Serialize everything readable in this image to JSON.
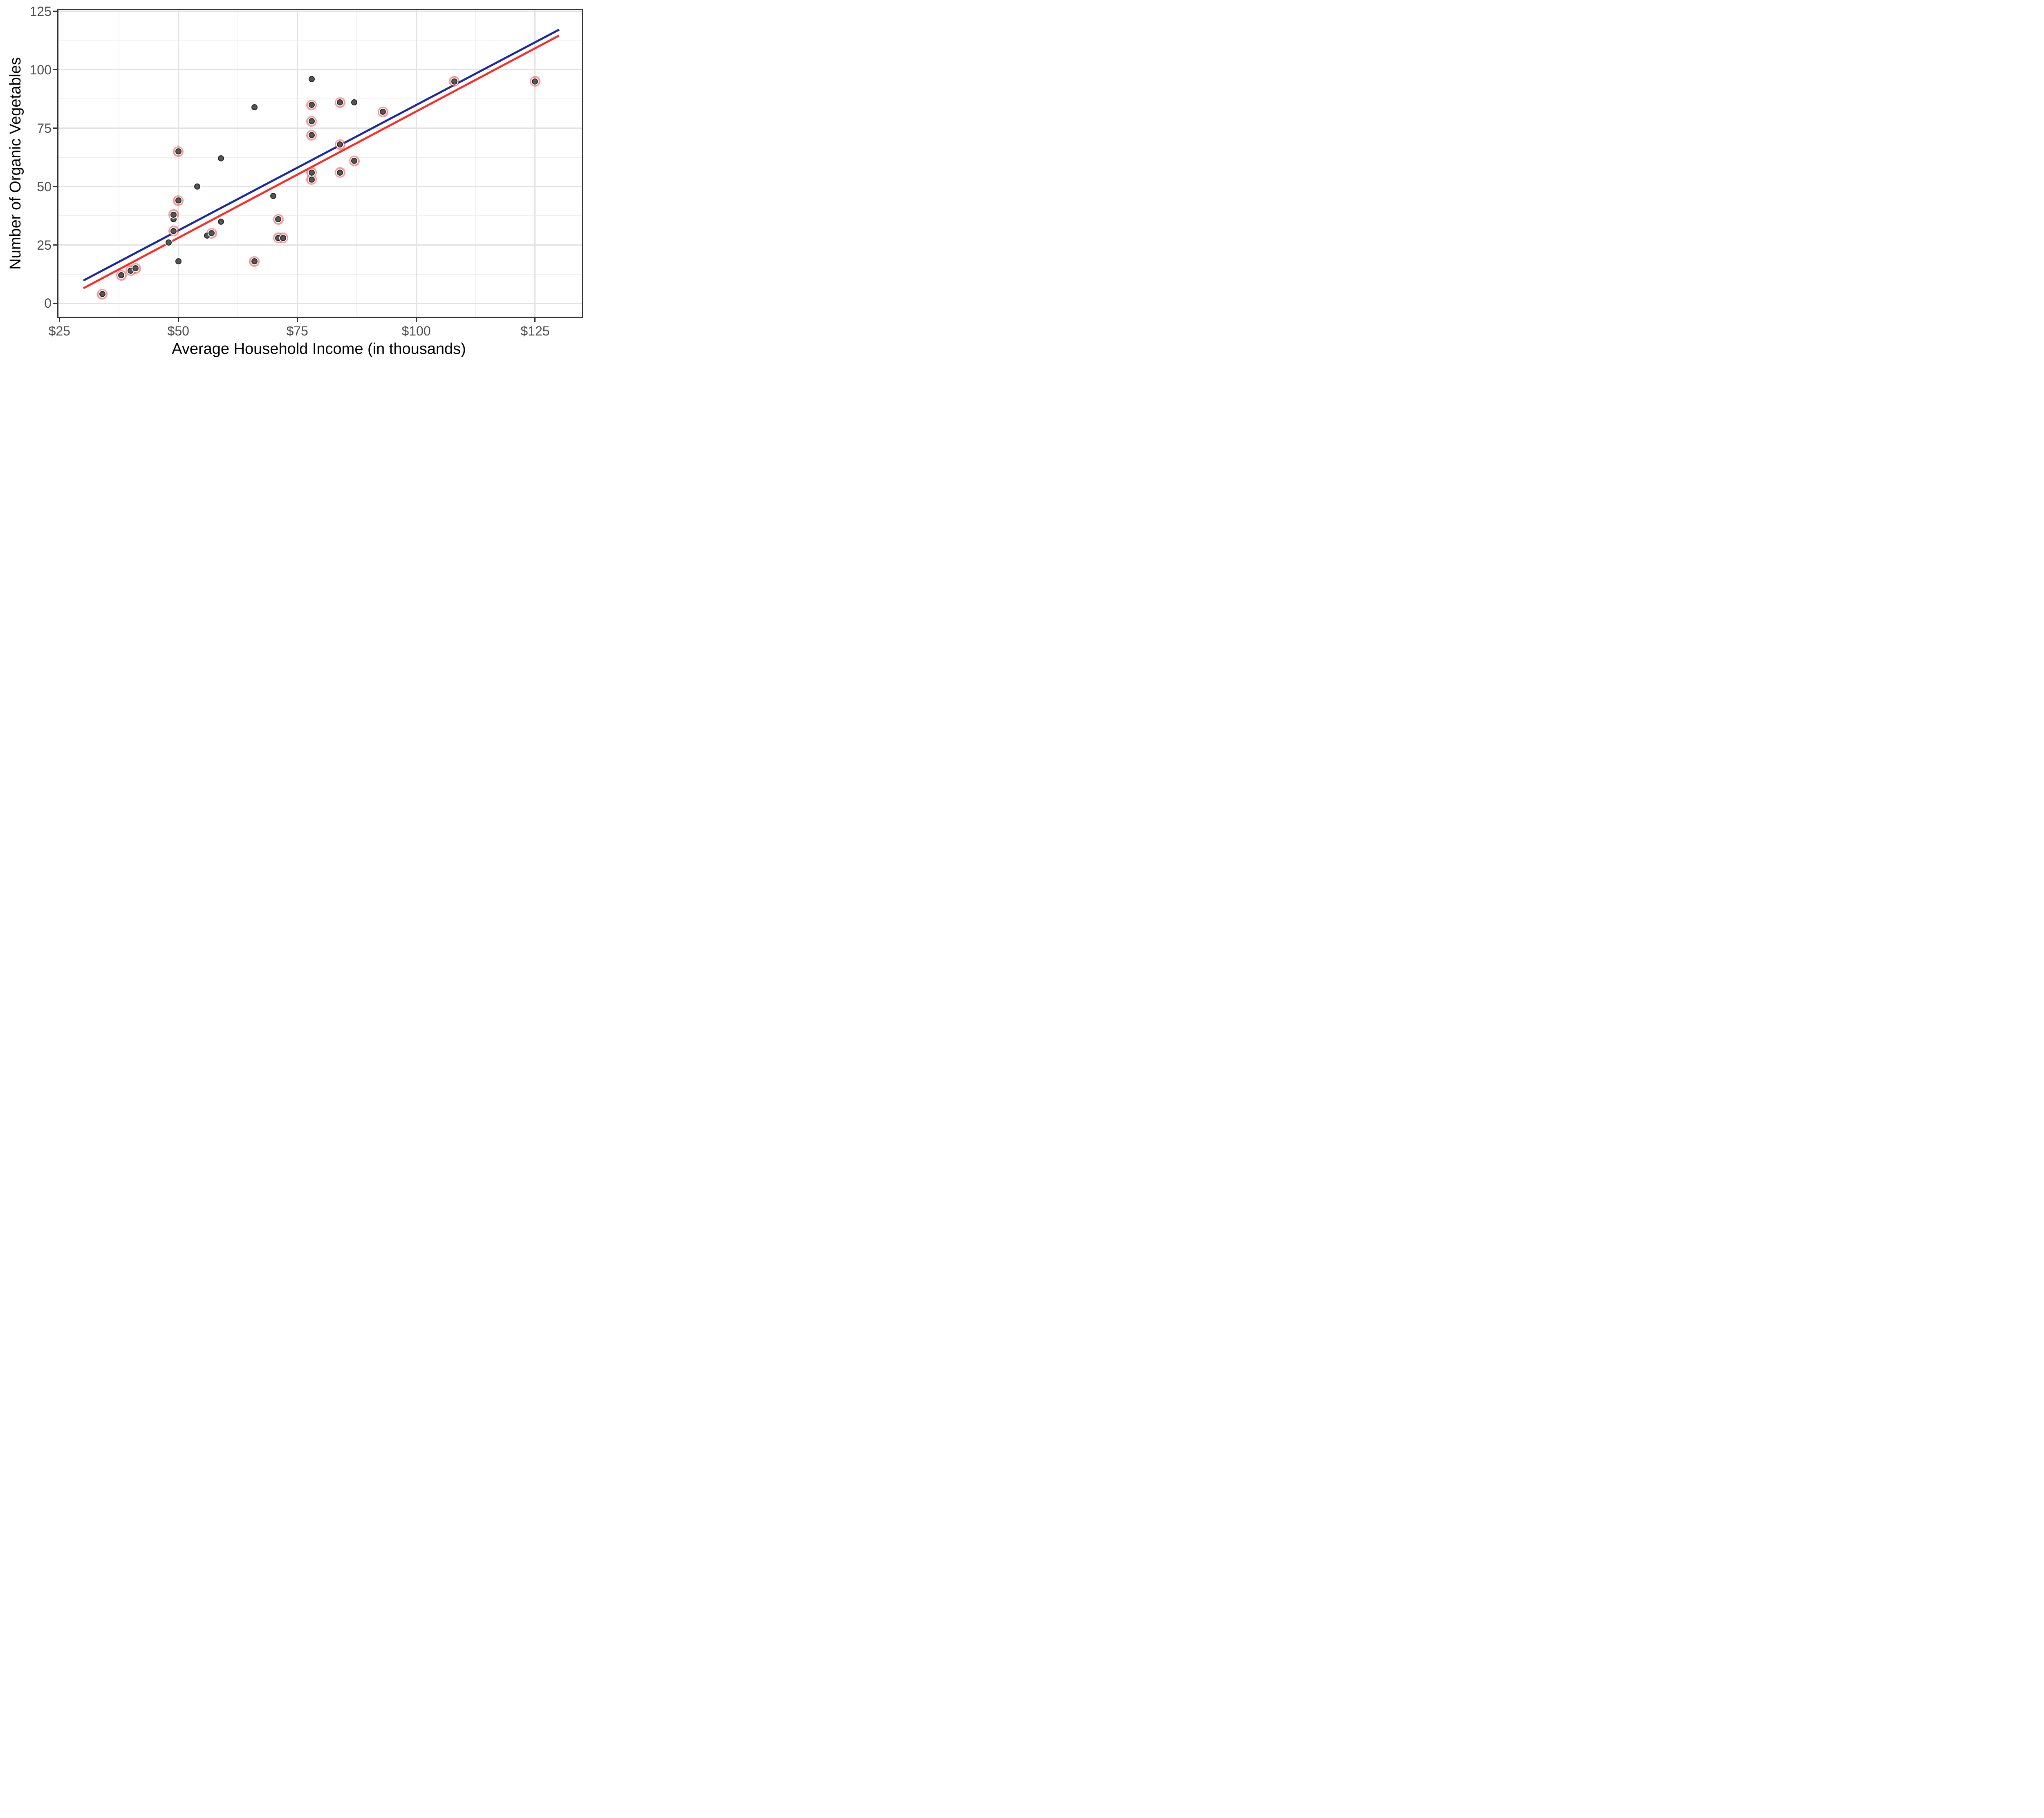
{
  "chart_data": {
    "type": "scatter",
    "title": "",
    "xlabel": "Average Household Income (in thousands)",
    "ylabel": "Number of Organic Vegetables",
    "xlim": [
      24.8,
      134.8
    ],
    "ylim": [
      -5.7,
      125.5
    ],
    "grid": "on",
    "legend": "none",
    "x_ticks": {
      "values": [
        25,
        50,
        75,
        100,
        125
      ],
      "labels": [
        "$25",
        "$50",
        "$75",
        "$100",
        "$125"
      ]
    },
    "y_ticks": {
      "values": [
        0,
        25,
        50,
        75,
        100,
        125
      ],
      "labels": [
        "0",
        "25",
        "50",
        "75",
        "100",
        "125"
      ]
    },
    "x_minor_gridlines": [
      37.5,
      62.5,
      87.5,
      112.5
    ],
    "y_minor_gridlines": [
      12.5,
      37.5,
      62.5,
      87.5,
      112.5
    ],
    "points": [
      {
        "x": 34,
        "y": 4,
        "highlighted": true
      },
      {
        "x": 38,
        "y": 12,
        "highlighted": true
      },
      {
        "x": 40,
        "y": 14,
        "highlighted": true
      },
      {
        "x": 41,
        "y": 15,
        "highlighted": true
      },
      {
        "x": 48,
        "y": 26,
        "highlighted": false
      },
      {
        "x": 49,
        "y": 31,
        "highlighted": true
      },
      {
        "x": 49,
        "y": 36,
        "highlighted": false
      },
      {
        "x": 49,
        "y": 38,
        "highlighted": true
      },
      {
        "x": 50,
        "y": 44,
        "highlighted": true
      },
      {
        "x": 50,
        "y": 65,
        "highlighted": true
      },
      {
        "x": 50,
        "y": 18,
        "highlighted": false
      },
      {
        "x": 54,
        "y": 50,
        "highlighted": false
      },
      {
        "x": 56,
        "y": 29,
        "highlighted": false
      },
      {
        "x": 57,
        "y": 30,
        "highlighted": true
      },
      {
        "x": 59,
        "y": 35,
        "highlighted": false
      },
      {
        "x": 59,
        "y": 62,
        "highlighted": false
      },
      {
        "x": 66,
        "y": 18,
        "highlighted": true
      },
      {
        "x": 66,
        "y": 84,
        "highlighted": false
      },
      {
        "x": 70,
        "y": 46,
        "highlighted": false
      },
      {
        "x": 71,
        "y": 36,
        "highlighted": true
      },
      {
        "x": 71,
        "y": 28,
        "highlighted": true
      },
      {
        "x": 72,
        "y": 28,
        "highlighted": true
      },
      {
        "x": 78,
        "y": 96,
        "highlighted": false
      },
      {
        "x": 78,
        "y": 85,
        "highlighted": true
      },
      {
        "x": 78,
        "y": 78,
        "highlighted": true
      },
      {
        "x": 78,
        "y": 72,
        "highlighted": true
      },
      {
        "x": 78,
        "y": 56,
        "highlighted": true
      },
      {
        "x": 78,
        "y": 53,
        "highlighted": true
      },
      {
        "x": 84,
        "y": 86,
        "highlighted": true
      },
      {
        "x": 84,
        "y": 68,
        "highlighted": true
      },
      {
        "x": 84,
        "y": 56,
        "highlighted": true
      },
      {
        "x": 87,
        "y": 86,
        "highlighted": false
      },
      {
        "x": 87,
        "y": 61,
        "highlighted": true
      },
      {
        "x": 93,
        "y": 82,
        "highlighted": true
      },
      {
        "x": 108,
        "y": 95,
        "highlighted": true
      },
      {
        "x": 125,
        "y": 95,
        "highlighted": true
      }
    ],
    "series": [
      {
        "name": "red-trend-line",
        "type": "line",
        "color": "#fa2e27",
        "x1": 30,
        "y1": 6.5,
        "x2": 130,
        "y2": 114.7
      },
      {
        "name": "blue-trend-line",
        "type": "line",
        "color": "#152aa6",
        "x1": 30,
        "y1": 9.8,
        "x2": 130,
        "y2": 117.2
      }
    ],
    "colors": {
      "point_fill": "#555555",
      "point_edge": "#232323",
      "point_halo": "#ffffff",
      "highlight_ring": "rgba(246,64,64,0.55)",
      "grid_major": "#e2e2e2",
      "grid_minor": "#efefef",
      "panel_border": "#333333",
      "tick": "#333333",
      "tick_label": "#4d4d4d",
      "axis_title": "#000000",
      "background": "#ffffff"
    }
  }
}
